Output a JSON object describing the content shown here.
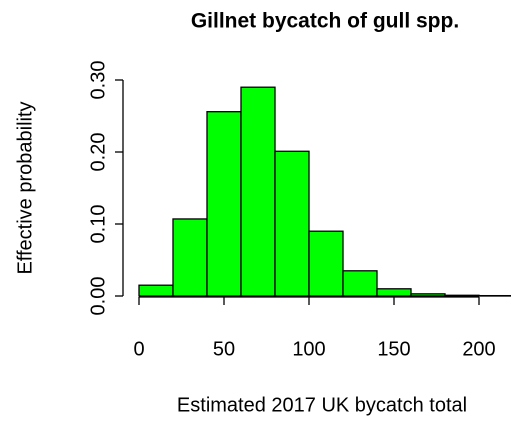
{
  "chart_data": {
    "type": "histogram",
    "title": "Gillnet bycatch of gull spp.",
    "x_label": "Estimated 2017 UK bycatch total",
    "y_label": "Effective probability",
    "bins": [
      0,
      20,
      40,
      60,
      80,
      100,
      120,
      140,
      160,
      180,
      200,
      220
    ],
    "values": [
      0.015,
      0.107,
      0.256,
      0.29,
      0.201,
      0.09,
      0.035,
      0.01,
      0.003,
      0.001,
      0.0005
    ],
    "color": "#00ff00",
    "xlim": [
      0,
      200
    ],
    "xticks": [
      0,
      50,
      100,
      150,
      200
    ],
    "ylim": [
      0,
      0.3
    ],
    "yticks": [
      {
        "value": 0,
        "label": "0.00"
      },
      {
        "value": 0.1,
        "label": "0.10"
      },
      {
        "value": 0.2,
        "label": "0.20"
      },
      {
        "value": 0.3,
        "label": "0.30"
      }
    ]
  }
}
